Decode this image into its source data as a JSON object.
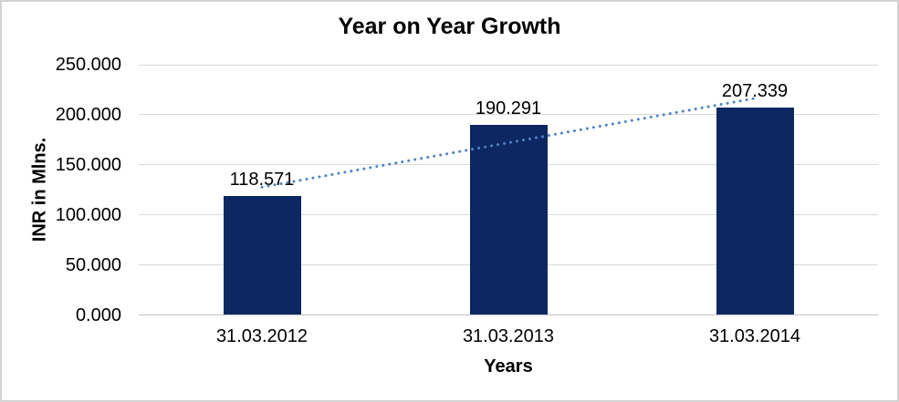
{
  "chart_data": {
    "type": "bar",
    "title": "Year on Year Growth",
    "xlabel": "Years",
    "ylabel": "INR in Mlns.",
    "categories": [
      "31.03.2012",
      "31.03.2013",
      "31.03.2014"
    ],
    "values": [
      118.571,
      190.291,
      207.339
    ],
    "data_labels": [
      "118.571",
      "190.291",
      "207.339"
    ],
    "ylim": [
      0,
      250
    ],
    "yticks": [
      0,
      50,
      100,
      150,
      200,
      250
    ],
    "ytick_labels": [
      "0.000",
      "50.000",
      "100.000",
      "150.000",
      "200.000",
      "250.000"
    ],
    "grid": "horizontal",
    "legend_position": "none",
    "trendline": {
      "type": "linear",
      "style": "dotted"
    },
    "colors": {
      "bar": "#0d2763",
      "trendline": "#4f82c2",
      "gridline": "#d9d9d9",
      "axis_line": "#c3c3c3",
      "text": "#000000"
    }
  }
}
